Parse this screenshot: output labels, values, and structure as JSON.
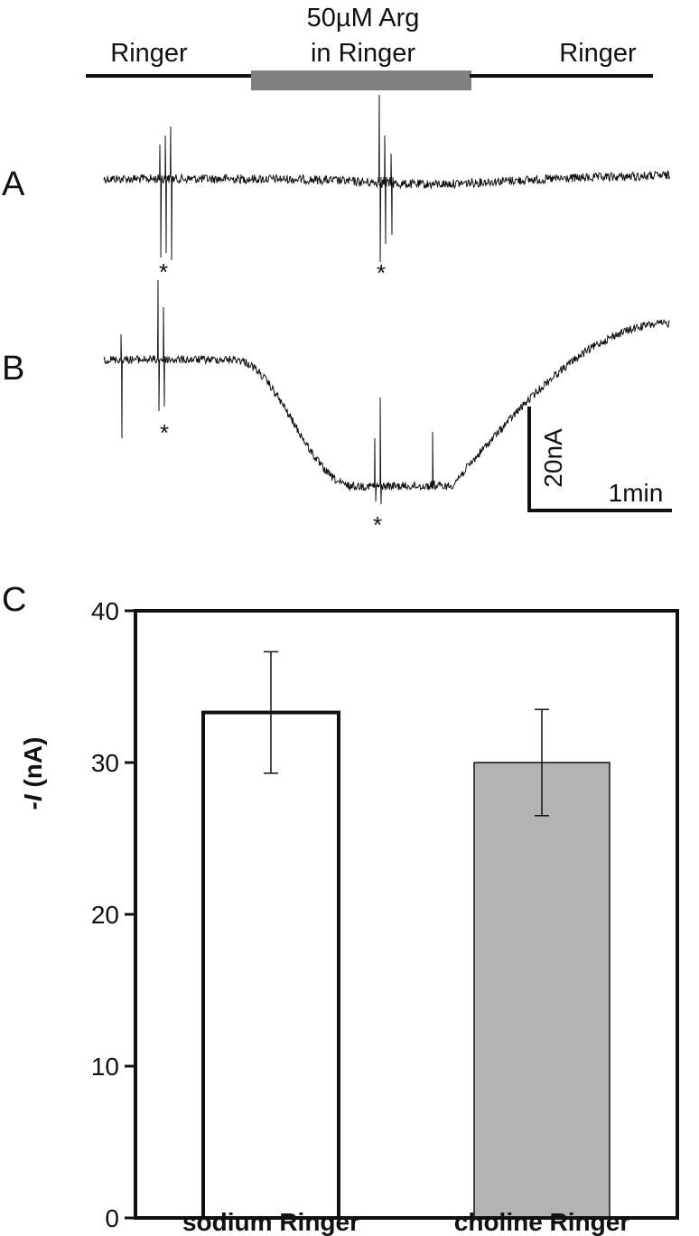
{
  "protocol": {
    "segments": [
      {
        "label": "Ringer",
        "kind": "ringer"
      },
      {
        "label_line1": "50µM Arg",
        "label_line2": "in Ringer",
        "kind": "arg"
      },
      {
        "label": "Ringer",
        "kind": "ringer"
      }
    ]
  },
  "traces": {
    "panel_a_label": "A",
    "panel_b_label": "B",
    "marker": "*",
    "scale_bar": {
      "current_label": "20nA",
      "time_label": "1min"
    }
  },
  "colors": {
    "ink": "#111111",
    "arg_bar": "#808080",
    "sodium_bar": "#ffffff",
    "choline_bar": "#b3b3b3"
  },
  "chart_data": {
    "type": "bar",
    "panel_label": "C",
    "title": "",
    "xlabel": "",
    "ylabel_italic": "-I",
    "ylabel_rest": " (nA)",
    "ylim": [
      0,
      40
    ],
    "yticks": [
      "0",
      "10",
      "20",
      "30",
      "40"
    ],
    "categories": [
      "sodium Ringer",
      "choline Ringer"
    ],
    "values": [
      33.3,
      30.0
    ],
    "errors": [
      4.0,
      3.5
    ],
    "bar_colors": [
      "#ffffff",
      "#b3b3b3"
    ]
  }
}
